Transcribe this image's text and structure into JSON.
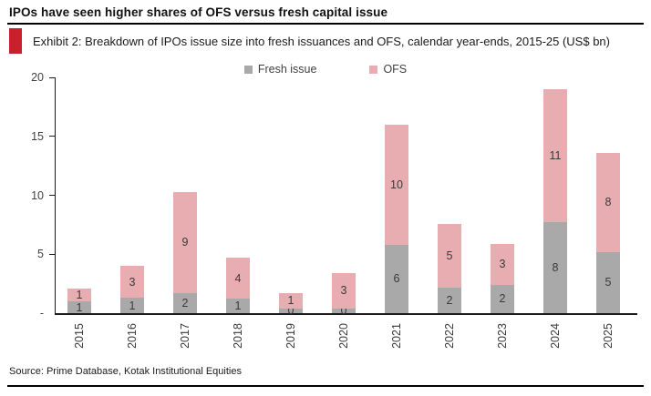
{
  "header": {
    "title": "IPOs have seen higher shares of OFS versus fresh capital issue",
    "exhibit_caption": "Exhibit 2: Breakdown of IPOs issue size into fresh issuances and OFS, calendar year-ends, 2015-25 (US$ bn)",
    "accent_color": "#c9202b"
  },
  "chart_data": {
    "type": "bar",
    "stacked": true,
    "title": "Breakdown of IPOs issue size into fresh issuances and OFS, calendar year-ends, 2015-25 (US$ bn)",
    "unit": "US$ bn",
    "categories": [
      "2015",
      "2016",
      "2017",
      "2018",
      "2019",
      "2020",
      "2021",
      "2022",
      "2023",
      "2024",
      "2025"
    ],
    "series": [
      {
        "name": "Fresh issue",
        "color": "#a9a9a9",
        "values": [
          1.0,
          1.3,
          1.7,
          1.2,
          0.4,
          0.4,
          5.8,
          2.2,
          2.4,
          7.7,
          5.2
        ],
        "labels": [
          "1",
          "1",
          "2",
          "1",
          "0",
          "0",
          "6",
          "2",
          "2",
          "8",
          "5"
        ]
      },
      {
        "name": "OFS",
        "color": "#e7adb1",
        "values": [
          1.1,
          2.7,
          8.6,
          3.5,
          1.3,
          3.0,
          10.2,
          5.4,
          3.5,
          11.3,
          8.4
        ],
        "labels": [
          "1",
          "3",
          "9",
          "4",
          "1",
          "3",
          "10",
          "5",
          "3",
          "11",
          "8"
        ]
      }
    ],
    "totals": [
      2.1,
      4.0,
      10.3,
      4.7,
      1.7,
      3.4,
      16.0,
      7.6,
      5.9,
      19.0,
      13.6
    ],
    "ylim": [
      0,
      20
    ],
    "y_ticks": {
      "values": [
        20,
        15,
        10,
        5,
        0
      ],
      "labels": [
        "20",
        "15",
        "10",
        "5",
        "-"
      ]
    },
    "legend_position": "top-center",
    "grid": false
  },
  "footer": {
    "source": "Source: Prime Database, Kotak Institutional Equities"
  }
}
